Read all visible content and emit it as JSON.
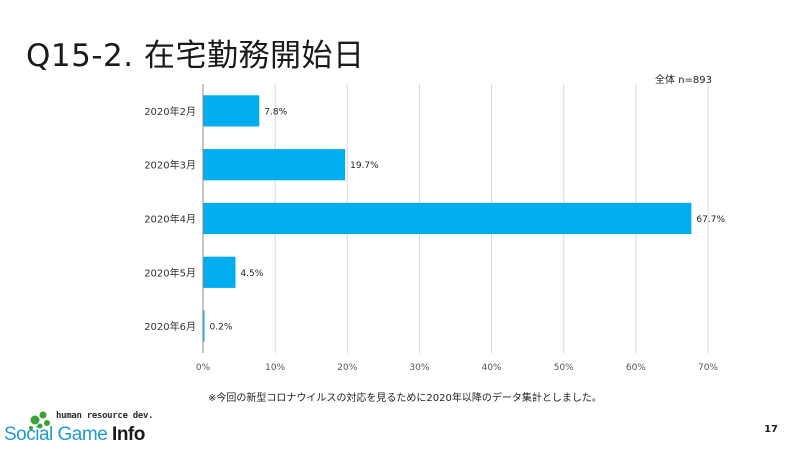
{
  "slide": {
    "title": "Q15-2. 在宅勤務開始日",
    "sample_note": "全体 n=893",
    "footnote": "※今回の新型コロナウイルスの対応を見るために2020年以降のデータ集計としました。",
    "page_number": "17"
  },
  "logo": {
    "tagline": "human resource dev.",
    "brand_main": "Social Game ",
    "brand_accent": "Info",
    "colors": {
      "main": "#1f9ad6",
      "accent": "#1a1a1a",
      "mark": "#3aa335"
    }
  },
  "chart_data": {
    "type": "bar",
    "orientation": "horizontal",
    "categories": [
      "2020年2月",
      "2020年3月",
      "2020年4月",
      "2020年5月",
      "2020年6月"
    ],
    "values": [
      7.8,
      19.7,
      67.7,
      4.5,
      0.2
    ],
    "value_labels": [
      "7.8%",
      "19.7%",
      "67.7%",
      "4.5%",
      "0.2%"
    ],
    "xlim": [
      0,
      70
    ],
    "x_ticks": [
      0,
      10,
      20,
      30,
      40,
      50,
      60,
      70
    ],
    "x_tick_labels": [
      "0%",
      "10%",
      "20%",
      "30%",
      "40%",
      "50%",
      "60%",
      "70%"
    ],
    "grid": true,
    "bar_color": "#00adef"
  }
}
